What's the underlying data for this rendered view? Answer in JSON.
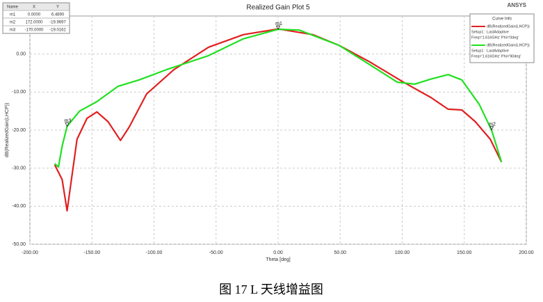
{
  "chart_data": {
    "type": "line",
    "title": "Realized Gain Plot 5",
    "brand": "ANSYS",
    "x_label": "Theta [deg]",
    "y_label": "dB(RealizedGain(LHCP))",
    "xlim": [
      -200,
      200
    ],
    "ylim": [
      -50,
      10
    ],
    "grid": true,
    "xticks": [
      {
        "value": -200,
        "label": "-200.00"
      },
      {
        "value": -150,
        "label": "-150.00"
      },
      {
        "value": -100,
        "label": "-100.00"
      },
      {
        "value": -50,
        "label": "-50.00"
      },
      {
        "value": 0,
        "label": "0.00"
      },
      {
        "value": 50,
        "label": "50.00"
      },
      {
        "value": 100,
        "label": "100.00"
      },
      {
        "value": 150,
        "label": "150.00"
      },
      {
        "value": 200,
        "label": "200.00"
      }
    ],
    "yticks": [
      {
        "value": -50,
        "label": "-50.00"
      },
      {
        "value": -40,
        "label": "-40.00"
      },
      {
        "value": -30,
        "label": "-30.00"
      },
      {
        "value": -20,
        "label": "-20.00"
      },
      {
        "value": -10,
        "label": "-10.00"
      },
      {
        "value": 0,
        "label": "0.00"
      }
    ],
    "legend_title": "Curve Info",
    "series": [
      {
        "name": "dB(RealizedGain(LHCP))",
        "setup": "Setup1 : LastAdaptive",
        "params": "Freq='1.616GHz' Phi='0deg'",
        "color": "#e02020",
        "x": [
          -180,
          -174,
          -170,
          -162,
          -154,
          -146,
          -137,
          -127,
          -120,
          -106,
          -84,
          -56,
          -28,
          0,
          28,
          49,
          73,
          101,
          123,
          137,
          148,
          159,
          171,
          180
        ],
        "values": [
          -29.1,
          -33,
          -41.2,
          -22.4,
          -16.9,
          -15.2,
          -17.8,
          -22.7,
          -19.2,
          -10.5,
          -4.1,
          1.8,
          5.1,
          6.6,
          5.1,
          2.3,
          -1.9,
          -7.4,
          -11.4,
          -14.5,
          -14.7,
          -17.8,
          -22.4,
          -28.4
        ]
      },
      {
        "name": "dB(RealizedGain(LHCP))",
        "setup": "Setup1 : LastAdaptive",
        "params": "Freq='1.616GHz' Phi='90deg'",
        "color": "#20e020",
        "x": [
          -180,
          -177,
          -174,
          -170,
          -160,
          -146,
          -129,
          -112,
          -90,
          -56,
          -28,
          0,
          17,
          49,
          73,
          96,
          110,
          123,
          137,
          148,
          162,
          172,
          180
        ],
        "values": [
          -28.8,
          -29.7,
          -24.2,
          -19.0,
          -15.0,
          -12.5,
          -8.5,
          -6.8,
          -4.1,
          -0.4,
          4.0,
          6.5,
          6.3,
          2.3,
          -2.6,
          -7.4,
          -7.9,
          -6.6,
          -5.4,
          -6.8,
          -13.2,
          -19.97,
          -28.4
        ]
      }
    ],
    "marker_table": {
      "columns": [
        "Name",
        "X",
        "Y"
      ]
    },
    "markers": [
      {
        "name": "m1",
        "x": {
          "value": 0,
          "label": "0.0000"
        },
        "y": {
          "value": 6.489,
          "label": "6.4890"
        }
      },
      {
        "name": "m2",
        "x": {
          "value": 172,
          "label": "172.0000"
        },
        "y": {
          "value": -19.9697,
          "label": "-19.9697"
        }
      },
      {
        "name": "m3",
        "x": {
          "value": -170,
          "label": "-170.0000"
        },
        "y": {
          "value": -19.0162,
          "label": "-19.0162"
        }
      }
    ],
    "caption": "图 17 L 天线增益图"
  }
}
